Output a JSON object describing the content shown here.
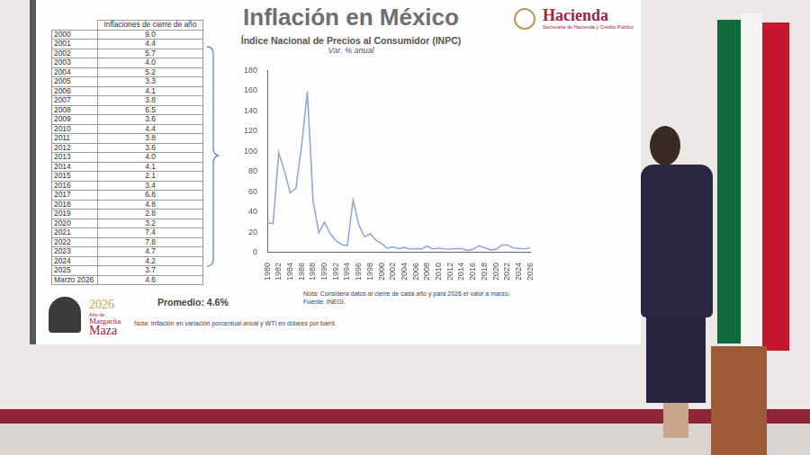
{
  "header": {
    "title": "Inflación en México",
    "logo_name": "Hacienda",
    "logo_subtitle": "Secretaría de Hacienda y Crédito Público"
  },
  "table": {
    "title": "Inflaciones de cierre de año",
    "rows": [
      [
        "2000",
        "9.0"
      ],
      [
        "2001",
        "4.4"
      ],
      [
        "2002",
        "5.7"
      ],
      [
        "2003",
        "4.0"
      ],
      [
        "2004",
        "5.2"
      ],
      [
        "2005",
        "3.3"
      ],
      [
        "2006",
        "4.1"
      ],
      [
        "2007",
        "3.8"
      ],
      [
        "2008",
        "6.5"
      ],
      [
        "2009",
        "3.6"
      ],
      [
        "2010",
        "4.4"
      ],
      [
        "2011",
        "3.8"
      ],
      [
        "2012",
        "3.6"
      ],
      [
        "2013",
        "4.0"
      ],
      [
        "2014",
        "4.1"
      ],
      [
        "2015",
        "2.1"
      ],
      [
        "2016",
        "3.4"
      ],
      [
        "2017",
        "6.8"
      ],
      [
        "2018",
        "4.8"
      ],
      [
        "2019",
        "2.8"
      ],
      [
        "2020",
        "3.2"
      ],
      [
        "2021",
        "7.4"
      ],
      [
        "2022",
        "7.8"
      ],
      [
        "2023",
        "4.7"
      ],
      [
        "2024",
        "4.2"
      ],
      [
        "2025",
        "3.7"
      ],
      [
        "Marzo 2026",
        "4.6"
      ]
    ]
  },
  "average": "Promedio: 4.6%",
  "footer_note": "Nota: Inflación en variación porcentual anual y WTI en dólares por barril.",
  "emblem": {
    "year": "2026",
    "lines": [
      "Año de",
      "Margarita",
      "Maza"
    ]
  },
  "chart_data": {
    "type": "line",
    "title": "Índice Nacional de Precios al Consumidor (INPC)",
    "subtitle": "Var. % anual",
    "x": [
      1980,
      1981,
      1982,
      1983,
      1984,
      1985,
      1986,
      1987,
      1988,
      1989,
      1990,
      1991,
      1992,
      1993,
      1994,
      1995,
      1996,
      1997,
      1998,
      1999,
      2000,
      2001,
      2002,
      2003,
      2004,
      2005,
      2006,
      2007,
      2008,
      2009,
      2010,
      2011,
      2012,
      2013,
      2014,
      2015,
      2016,
      2017,
      2018,
      2019,
      2020,
      2021,
      2022,
      2023,
      2024,
      2025,
      2026
    ],
    "values": [
      29.8,
      28.7,
      98.8,
      80.8,
      59.2,
      63.7,
      105.7,
      159.2,
      51.7,
      19.7,
      29.9,
      18.8,
      11.9,
      8.0,
      7.1,
      52.0,
      27.7,
      15.7,
      18.6,
      12.3,
      9.0,
      4.4,
      5.7,
      4.0,
      5.2,
      3.3,
      4.1,
      3.8,
      6.5,
      3.6,
      4.4,
      3.8,
      3.6,
      4.0,
      4.1,
      2.1,
      3.4,
      6.8,
      4.8,
      2.8,
      3.2,
      7.4,
      7.8,
      4.7,
      4.2,
      3.7,
      4.6
    ],
    "color": "#93aad8",
    "xlim": [
      1980,
      2026
    ],
    "xticks": [
      1980,
      1982,
      1984,
      1986,
      1988,
      1990,
      1992,
      1994,
      1996,
      1998,
      2000,
      2002,
      2004,
      2006,
      2008,
      2010,
      2012,
      2014,
      2016,
      2018,
      2020,
      2022,
      2024,
      2026
    ],
    "ylim": [
      0,
      180
    ],
    "yticks": [
      0,
      20,
      40,
      60,
      80,
      100,
      120,
      140,
      160,
      180
    ],
    "grid": false,
    "notes": [
      "Nota: Considera datos al cierre de cada año y para 2026 el valor a marzo.",
      "Fuente: INEGI."
    ]
  }
}
